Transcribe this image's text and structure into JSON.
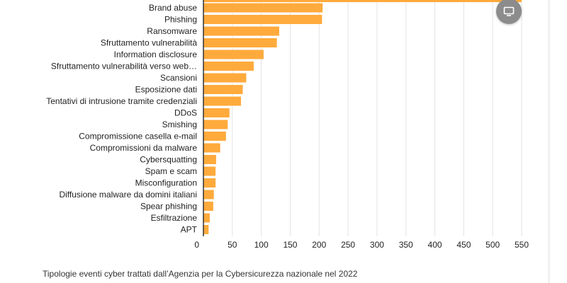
{
  "chart_data": {
    "type": "bar",
    "orientation": "horizontal",
    "title": "",
    "xlabel": "",
    "ylabel": "",
    "xlim": [
      0,
      550
    ],
    "grid": true,
    "legend": "none",
    "bar_color": "#FFAA3C",
    "categories": [
      "Brand abuse",
      "Phishing",
      "Ransomware",
      "Sfruttamento vulnerabilità",
      "Information disclosure",
      "Sfruttamento vulnerabilità verso web…",
      "Scansioni",
      "Esposizione dati",
      "Tentativi di intrusione tramite credenziali",
      "DDoS",
      "Smishing",
      "Compromissione casella e-mail",
      "Compromissioni da malware",
      "Cybersquatting",
      "Spam e scam",
      "Misconfiguration",
      "Diffusione malware da domini italiani",
      "Spear phishing",
      "Esfiltrazione",
      "APT"
    ],
    "values": [
      206,
      205,
      131,
      127,
      104,
      87,
      74,
      68,
      65,
      45,
      42,
      39,
      29,
      22,
      21,
      21,
      18,
      17,
      11,
      9
    ],
    "ticks": [
      "0",
      "50",
      "100",
      "150",
      "200",
      "250",
      "300",
      "350",
      "400",
      "450",
      "500",
      "550"
    ],
    "tick_values": [
      0,
      50,
      100,
      150,
      200,
      250,
      300,
      350,
      400,
      450,
      500,
      550
    ],
    "top_bar_value": 550
  },
  "caption": "Tipologie eventi cyber trattati dall’Agenzia per la Cybersicurezza nazionale nel 2022",
  "screen_button": {
    "icon": "monitor-icon",
    "color": "#8c8c8c"
  }
}
